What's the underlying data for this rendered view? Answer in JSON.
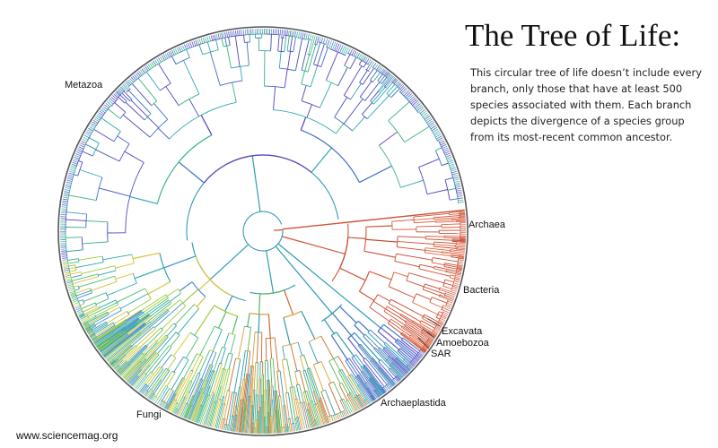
{
  "title": "The Tree of Life:",
  "description": "This circular tree of life doesn’t include every branch, only those that have at least 500 species associated with them. Each branch depicts the divergence of a species group from its most-recent common ancestor.",
  "credit": "www.sciencemag.org",
  "clades": {
    "metazoa": "Metazoa",
    "archaea": "Archaea",
    "bacteria": "Bacteria",
    "excavata": "Excavata",
    "amoebozoa": "Amoebozoa",
    "sar": "SAR",
    "archaeplastida": "Archaeplastida",
    "fungi": "Fungi"
  },
  "colors": {
    "bacteria": "#d0533a",
    "archaea": "#d0533a",
    "metazoa_tips": "#4a4fc0",
    "fungi_tips": "#9ccc3a",
    "deep_branches": "#2f9cb0",
    "ring": "#555555"
  }
}
